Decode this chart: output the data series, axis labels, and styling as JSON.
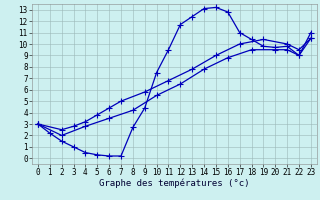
{
  "title": "Graphe des températures (°c)",
  "background_color": "#cdf0f0",
  "line_color": "#0000bb",
  "xlim": [
    -0.5,
    23.5
  ],
  "ylim": [
    -0.5,
    13.5
  ],
  "xticks": [
    0,
    1,
    2,
    3,
    4,
    5,
    6,
    7,
    8,
    9,
    10,
    11,
    12,
    13,
    14,
    15,
    16,
    17,
    18,
    19,
    20,
    21,
    22,
    23
  ],
  "yticks": [
    0,
    1,
    2,
    3,
    4,
    5,
    6,
    7,
    8,
    9,
    10,
    11,
    12,
    13
  ],
  "curve_x": [
    0,
    1,
    2,
    3,
    4,
    5,
    6,
    7,
    8,
    9,
    10,
    11,
    12,
    13,
    14,
    15,
    16,
    17,
    18,
    19,
    20,
    21,
    22,
    23
  ],
  "curve_y": [
    3.0,
    2.2,
    1.5,
    1.0,
    0.5,
    0.3,
    0.2,
    0.2,
    2.7,
    4.4,
    7.5,
    9.5,
    11.7,
    12.4,
    13.1,
    13.2,
    12.8,
    11.0,
    10.4,
    9.8,
    9.7,
    9.8,
    9.0,
    11.0
  ],
  "diag1_x": [
    0,
    2,
    3,
    4,
    5,
    6,
    7,
    9,
    11,
    13,
    15,
    17,
    19,
    21,
    22,
    23
  ],
  "diag1_y": [
    3.0,
    2.5,
    2.8,
    3.2,
    3.8,
    4.4,
    5.0,
    5.8,
    6.8,
    7.8,
    9.0,
    10.0,
    10.4,
    10.0,
    9.5,
    10.5
  ],
  "diag2_x": [
    0,
    2,
    4,
    6,
    8,
    10,
    12,
    14,
    16,
    18,
    20,
    21,
    22,
    23
  ],
  "diag2_y": [
    3.0,
    2.0,
    2.8,
    3.5,
    4.2,
    5.5,
    6.5,
    7.8,
    8.8,
    9.5,
    9.5,
    9.5,
    9.0,
    10.5
  ],
  "marker": "+",
  "markersize": 4,
  "linewidth": 0.9,
  "tick_fontsize": 5.5,
  "xlabel_fontsize": 6.5,
  "grid_color": "#9bb8b8",
  "grid_linewidth": 0.4
}
